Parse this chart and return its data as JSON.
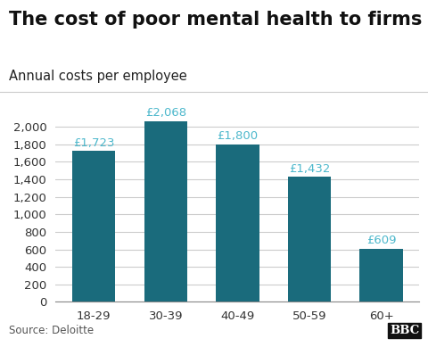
{
  "title": "The cost of poor mental health to firms",
  "subtitle": "Annual costs per employee",
  "source": "Source: Deloitte",
  "categories": [
    "18-29",
    "30-39",
    "40-49",
    "50-59",
    "60+"
  ],
  "values": [
    1723,
    2068,
    1800,
    1432,
    609
  ],
  "labels": [
    "£1,723",
    "£2,068",
    "£1,800",
    "£1,432",
    "£609"
  ],
  "bar_color": "#1a6b7c",
  "label_color": "#4db8cc",
  "background_color": "#ffffff",
  "ylim": [
    0,
    2300
  ],
  "yticks": [
    0,
    200,
    400,
    600,
    800,
    1000,
    1200,
    1400,
    1600,
    1800,
    2000
  ],
  "title_fontsize": 15,
  "subtitle_fontsize": 10.5,
  "label_fontsize": 9.5,
  "tick_fontsize": 9.5,
  "source_fontsize": 8.5,
  "bbc_text": "BBC",
  "grid_color": "#cccccc",
  "bar_width": 0.6
}
